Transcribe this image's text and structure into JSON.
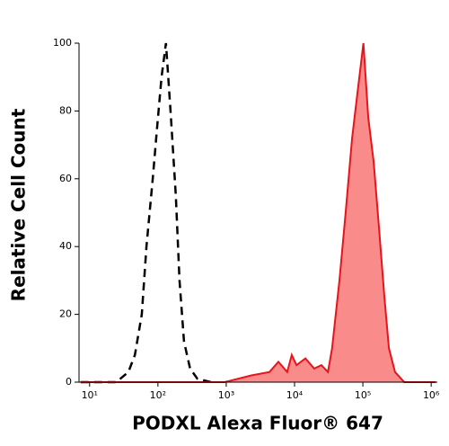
{
  "chart_data": {
    "type": "histogram-overlay",
    "xlabel": "PODXL Alexa Fluor® 647",
    "ylabel": "Relative Cell Count",
    "xscale": "log",
    "xlim": [
      7,
      1230000
    ],
    "ylim": [
      0,
      100
    ],
    "xticks": [
      {
        "value": 10,
        "label": "10¹"
      },
      {
        "value": 100,
        "label": "10²"
      },
      {
        "value": 1000,
        "label": "10³"
      },
      {
        "value": 10000,
        "label": "10⁴"
      },
      {
        "value": 100000,
        "label": "10⁵"
      },
      {
        "value": 1000000,
        "label": "10⁶"
      }
    ],
    "yticks": [
      0,
      20,
      40,
      60,
      80,
      100
    ],
    "series": [
      {
        "color": "#000000",
        "dashed": true,
        "x": [
          7.4,
          24.5,
          37,
          46,
          58,
          68,
          84,
          97,
          113,
          131,
          153,
          183,
          207,
          241,
          296,
          378,
          600
        ],
        "values": [
          0,
          0,
          3,
          8,
          20,
          40,
          60,
          75,
          90,
          100,
          80,
          55,
          30,
          12,
          4,
          1,
          0
        ]
      },
      {
        "color": "#e8141b",
        "fill": "#f98b8b",
        "dashed": false,
        "x": [
          7.4,
          940,
          2330,
          4300,
          5800,
          7800,
          9100,
          10700,
          14400,
          19400,
          24700,
          30800,
          35400,
          45400,
          56000,
          69600,
          83000,
          102000,
          120000,
          144000,
          173000,
          207000,
          241000,
          296000,
          404000,
          1170000
        ],
        "values": [
          0,
          0,
          2,
          3,
          6,
          3,
          8,
          5,
          7,
          4,
          5,
          3,
          10,
          30,
          50,
          72,
          85,
          100,
          78,
          65,
          45,
          25,
          10,
          3,
          0,
          0
        ]
      }
    ]
  }
}
